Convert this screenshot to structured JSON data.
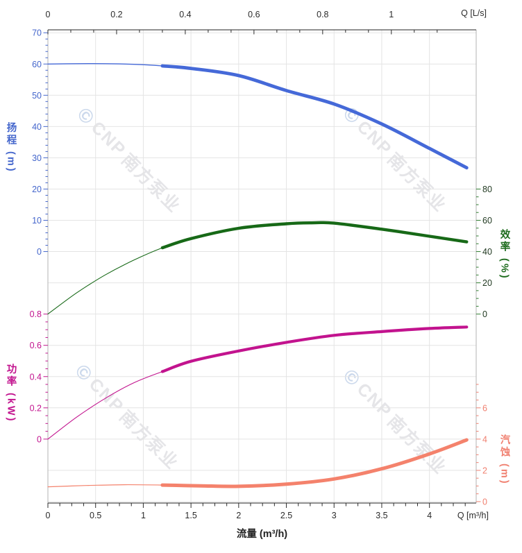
{
  "watermark": {
    "logo_glyph": "©",
    "brand": "CNP",
    "name": "南方泵业",
    "text_color": "#e5e5e8",
    "logo_color": "#ccd9ec"
  },
  "chart_data": {
    "type": "line",
    "title": "",
    "grid": true,
    "legend": "none",
    "plot": {
      "x_max_m3h": 4.49,
      "x_max_ls": 1.247
    },
    "x_axis_top": {
      "corner_label": "Q [L/s]",
      "major_ticks": [
        0,
        0.2,
        0.4,
        0.6,
        0.8,
        1
      ],
      "tick_labels": [
        "0",
        "0.2",
        "0.4",
        "0.6",
        "0.8",
        "1"
      ],
      "minor_divisions": 3,
      "color": "#2b2b2b"
    },
    "x_axis_bottom": {
      "title": "流量 (m³/h)",
      "corner_label": "Q [m³/h]",
      "major_ticks": [
        0,
        0.5,
        1,
        1.5,
        2,
        2.5,
        3,
        3.5,
        4
      ],
      "tick_labels": [
        "0",
        "0.5",
        "1",
        "1.5",
        "2",
        "2.5",
        "3",
        "3.5",
        "4"
      ],
      "minor_step": 0.125,
      "color": "#2b2b2b"
    },
    "y_axes": [
      {
        "id": "head",
        "title": "扬程 (m)",
        "side": "left",
        "rows": [
          0,
          7
        ],
        "max": 70,
        "min": 0,
        "major_ticks": [
          70,
          60,
          50,
          40,
          30,
          20,
          10,
          0
        ],
        "minor_step": 2,
        "label_color": "#4466cc",
        "tick_color": "#4466cc",
        "title_color": "#4466cc"
      },
      {
        "id": "efficiency",
        "title": "效率 (%)",
        "side": "right",
        "rows": [
          5,
          9
        ],
        "max": 80,
        "min": 0,
        "major_ticks": [
          80,
          60,
          40,
          20,
          0
        ],
        "minor_step": 5,
        "label_color": "#223a22",
        "tick_color": "#2f7d2f",
        "title_color": "#1c6b1c"
      },
      {
        "id": "power",
        "title": "功率 (kW)",
        "side": "left",
        "rows": [
          9,
          13
        ],
        "max": 0.8,
        "min": 0,
        "major_ticks": [
          0.8,
          0.6,
          0.4,
          0.2,
          0
        ],
        "minor_step": 0.05,
        "label_color": "#c2138e",
        "tick_color": "#c2138e",
        "title_color": "#c2138e"
      },
      {
        "id": "npsh",
        "title": "汽蚀 (m)",
        "side": "right",
        "rows": [
          11,
          15
        ],
        "max": 8,
        "min": 0,
        "major_ticks": [
          6,
          4,
          2,
          0
        ],
        "minor_step": 0.5,
        "label_color": "#f08070",
        "tick_color": "#f08070",
        "title_color": "#f08070"
      }
    ],
    "series": [
      {
        "name": "扬程",
        "id": "head",
        "axis": "head",
        "color": "#4569d8",
        "thin_width": 1.3,
        "thick_width": 4.8,
        "thick_from": 1.2,
        "points": [
          [
            0,
            60
          ],
          [
            0.3,
            60.1
          ],
          [
            0.6,
            60.1
          ],
          [
            0.9,
            59.9
          ],
          [
            1.2,
            59.4
          ],
          [
            1.5,
            58.6
          ],
          [
            2,
            56.3
          ],
          [
            2.5,
            51.5
          ],
          [
            3,
            47.2
          ],
          [
            3.5,
            40.8
          ],
          [
            4,
            33
          ],
          [
            4.39,
            26.8
          ]
        ]
      },
      {
        "name": "效率",
        "id": "efficiency",
        "axis": "efficiency",
        "color": "#176917",
        "thin_width": 1.1,
        "thick_width": 4.4,
        "thick_from": 1.2,
        "points": [
          [
            0,
            0
          ],
          [
            0.3,
            13.5
          ],
          [
            0.6,
            25
          ],
          [
            0.9,
            34.5
          ],
          [
            1.2,
            42.4
          ],
          [
            1.5,
            48.3
          ],
          [
            2,
            54.9
          ],
          [
            2.5,
            57.8
          ],
          [
            2.8,
            58.4
          ],
          [
            3,
            58.2
          ],
          [
            3.5,
            54.3
          ],
          [
            4,
            49.8
          ],
          [
            4.39,
            46.2
          ]
        ]
      },
      {
        "name": "功率",
        "id": "power",
        "axis": "power",
        "color": "#c2138e",
        "thin_width": 1.1,
        "thick_width": 4.2,
        "thick_from": 1.2,
        "points": [
          [
            0,
            0
          ],
          [
            0.3,
            0.14
          ],
          [
            0.6,
            0.26
          ],
          [
            0.9,
            0.36
          ],
          [
            1.2,
            0.432
          ],
          [
            1.5,
            0.498
          ],
          [
            2,
            0.564
          ],
          [
            2.5,
            0.619
          ],
          [
            3,
            0.664
          ],
          [
            3.5,
            0.688
          ],
          [
            4,
            0.708
          ],
          [
            4.39,
            0.717
          ]
        ]
      },
      {
        "name": "汽蚀",
        "id": "npsh",
        "axis": "npsh",
        "color": "#f4826c",
        "thin_width": 1.2,
        "thick_width": 5,
        "thick_from": 1.2,
        "points": [
          [
            0,
            0.95
          ],
          [
            0.4,
            1.03
          ],
          [
            0.8,
            1.08
          ],
          [
            1.2,
            1.06
          ],
          [
            1.6,
            1.01
          ],
          [
            2,
            0.98
          ],
          [
            2.5,
            1.12
          ],
          [
            3,
            1.45
          ],
          [
            3.5,
            2.1
          ],
          [
            4,
            3.05
          ],
          [
            4.39,
            3.95
          ]
        ]
      }
    ]
  }
}
